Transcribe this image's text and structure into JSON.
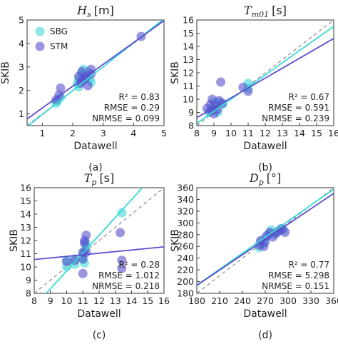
{
  "colors": {
    "SBG": "#3dd9d6",
    "STM": "#5a4fcf",
    "identity": "#777777"
  },
  "chart_data": [
    {
      "type": "scatter",
      "title_main": "H",
      "title_sub": "s",
      "title_unit": "[m]",
      "xlabel": "Datawell",
      "ylabel": "SKIB",
      "panel": "(a)",
      "xlim": [
        0.5,
        5
      ],
      "ylim": [
        0.5,
        5
      ],
      "xticks": [
        1,
        2,
        3,
        4,
        5
      ],
      "yticks": [
        1,
        2,
        3,
        4,
        5
      ],
      "legend": [
        "SBG",
        "STM"
      ],
      "stats": {
        "r2": "R² = 0.83",
        "rmse": "RMSE = 0.29",
        "nrmse": "NRMSE = 0.099"
      },
      "series": [
        {
          "name": "SBG",
          "color": "#3dd9d6",
          "fit": {
            "slope": 1.02,
            "intercept": -0.05
          },
          "points": [
            [
              1.45,
              1.45
            ],
            [
              1.5,
              1.55
            ],
            [
              1.6,
              1.7
            ],
            [
              2.15,
              2.3
            ],
            [
              2.2,
              2.5
            ],
            [
              2.25,
              2.4
            ],
            [
              2.3,
              2.7
            ],
            [
              2.35,
              2.9
            ],
            [
              2.4,
              2.6
            ],
            [
              2.5,
              2.8
            ],
            [
              2.55,
              2.5
            ],
            [
              2.6,
              2.35
            ],
            [
              2.2,
              2.15
            ]
          ]
        },
        {
          "name": "STM",
          "color": "#5a4fcf",
          "fit": {
            "slope": 0.93,
            "intercept": 0.32
          },
          "points": [
            [
              1.45,
              1.6
            ],
            [
              1.55,
              1.8
            ],
            [
              1.6,
              2.1
            ],
            [
              2.2,
              2.6
            ],
            [
              2.25,
              2.3
            ],
            [
              2.3,
              2.4
            ],
            [
              2.3,
              2.8
            ],
            [
              2.4,
              2.5
            ],
            [
              2.45,
              2.6
            ],
            [
              2.5,
              2.2
            ],
            [
              2.6,
              2.7
            ],
            [
              2.6,
              2.9
            ],
            [
              4.25,
              4.3
            ]
          ]
        }
      ]
    },
    {
      "type": "scatter",
      "title_main": "T",
      "title_sub": "m01",
      "title_unit": "[s]",
      "xlabel": "Datawell",
      "ylabel": "SKIB",
      "panel": "(b)",
      "xlim": [
        8,
        16
      ],
      "ylim": [
        8,
        16
      ],
      "xticks": [
        8,
        9,
        10,
        11,
        12,
        13,
        14,
        15,
        16
      ],
      "yticks": [
        8,
        9,
        10,
        11,
        12,
        13,
        14,
        15,
        16
      ],
      "legend": [],
      "stats": {
        "r2": "R² = 0.67",
        "rmse": "RMSE = 0.591",
        "nrmse": "NRMSE = 0.239"
      },
      "series": [
        {
          "name": "SBG",
          "color": "#3dd9d6",
          "fit": {
            "slope": 0.92,
            "intercept": 0.8
          },
          "points": [
            [
              8.7,
              9.0
            ],
            [
              8.9,
              9.2
            ],
            [
              9.0,
              9.4
            ],
            [
              9.1,
              9.6
            ],
            [
              9.2,
              9.0
            ],
            [
              9.3,
              9.8
            ],
            [
              9.5,
              9.6
            ],
            [
              11.0,
              11.2
            ],
            [
              11.0,
              10.8
            ],
            [
              9.0,
              9.8
            ]
          ]
        },
        {
          "name": "STM",
          "color": "#5a4fcf",
          "fit": {
            "slope": 0.75,
            "intercept": 2.6
          },
          "points": [
            [
              8.6,
              9.3
            ],
            [
              8.8,
              9.1
            ],
            [
              8.9,
              10.0
            ],
            [
              9.0,
              8.9
            ],
            [
              9.1,
              9.5
            ],
            [
              9.2,
              9.2
            ],
            [
              9.3,
              9.9
            ],
            [
              9.4,
              11.3
            ],
            [
              9.5,
              9.7
            ],
            [
              10.7,
              10.9
            ],
            [
              11.0,
              10.6
            ],
            [
              8.8,
              9.6
            ]
          ]
        }
      ]
    },
    {
      "type": "scatter",
      "title_main": "T",
      "title_sub": "p",
      "title_unit": "[s]",
      "xlabel": "Datawell",
      "ylabel": "SKIB",
      "panel": "(c)",
      "xlim": [
        8,
        16
      ],
      "ylim": [
        8,
        16
      ],
      "xticks": [
        8,
        9,
        10,
        11,
        12,
        13,
        14,
        15,
        16
      ],
      "yticks": [
        8,
        9,
        10,
        11,
        12,
        13,
        14,
        15,
        16
      ],
      "legend": [],
      "stats": {
        "r2": "R² = 0.28",
        "rmse": "RMSE = 1.012",
        "nrmse": "NRMSE = 0.218"
      },
      "series": [
        {
          "name": "SBG",
          "color": "#3dd9d6",
          "fit": {
            "slope": 1.35,
            "intercept": -3.8
          },
          "points": [
            [
              10.0,
              10.5
            ],
            [
              10.0,
              10.0
            ],
            [
              10.5,
              10.2
            ],
            [
              10.5,
              10.6
            ],
            [
              11.0,
              11.0
            ],
            [
              11.0,
              10.6
            ],
            [
              11.1,
              11.2
            ],
            [
              11.2,
              11.8
            ],
            [
              11.2,
              11.5
            ],
            [
              13.4,
              14.1
            ],
            [
              11.1,
              10.3
            ]
          ]
        },
        {
          "name": "STM",
          "color": "#5a4fcf",
          "fit": {
            "slope": 0.12,
            "intercept": 9.6
          },
          "points": [
            [
              10.0,
              10.4
            ],
            [
              10.5,
              10.5
            ],
            [
              11.0,
              9.5
            ],
            [
              11.0,
              11.1
            ],
            [
              11.1,
              11.8
            ],
            [
              11.1,
              12.0
            ],
            [
              11.2,
              12.4
            ],
            [
              11.2,
              11.1
            ],
            [
              13.3,
              12.6
            ],
            [
              13.4,
              10.5
            ],
            [
              13.4,
              9.9
            ],
            [
              11.0,
              10.6
            ]
          ]
        }
      ]
    },
    {
      "type": "scatter",
      "title_main": "D",
      "title_sub": "p",
      "title_unit": "[°]",
      "xlabel": "Datawell",
      "ylabel": "SKIB",
      "panel": "(d)",
      "xlim": [
        180,
        360
      ],
      "ylim": [
        180,
        360
      ],
      "xticks": [
        180,
        210,
        240,
        270,
        300,
        330,
        360
      ],
      "yticks": [
        180,
        200,
        220,
        240,
        260,
        280,
        300,
        320,
        340,
        360
      ],
      "legend": [],
      "stats": {
        "r2": "R² = 0.77",
        "rmse": "RMSE = 5.298",
        "nrmse": "NRMSE = 0.151"
      },
      "series": [
        {
          "name": "SBG",
          "color": "#3dd9d6",
          "fit": {
            "slope": 0.91,
            "intercept": 30
          },
          "points": [
            [
              262,
              258
            ],
            [
              265,
              268
            ],
            [
              270,
              275
            ],
            [
              275,
              282
            ],
            [
              278,
              288
            ],
            [
              280,
              280
            ],
            [
              285,
              284
            ],
            [
              290,
              290
            ],
            [
              294,
              288
            ],
            [
              268,
              265
            ]
          ]
        },
        {
          "name": "STM",
          "color": "#5a4fcf",
          "fit": {
            "slope": 0.87,
            "intercept": 37
          },
          "points": [
            [
              262,
              262
            ],
            [
              264,
              270
            ],
            [
              268,
              260
            ],
            [
              272,
              278
            ],
            [
              276,
              284
            ],
            [
              280,
              276
            ],
            [
              284,
              282
            ],
            [
              288,
              286
            ],
            [
              292,
              290
            ],
            [
              296,
              284
            ],
            [
              270,
              268
            ]
          ]
        }
      ]
    }
  ]
}
